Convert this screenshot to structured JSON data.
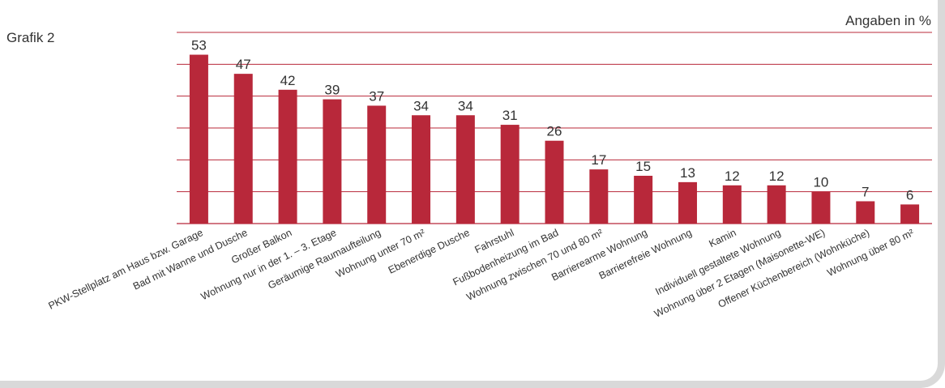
{
  "caption": "Grafik 2",
  "units_note": "Angaben in %",
  "colors": {
    "bar": "#b8283a",
    "grid": "#b8283a",
    "text": "#333333"
  },
  "chart_data": {
    "type": "bar",
    "categories": [
      "PKW-Stellplatz am Haus bzw. Garage",
      "Bad mit Wanne und Dusche",
      "Großer Balkon",
      "Wohnung nur in der 1. – 3. Etage",
      "Geräumige Raumaufteilung",
      "Wohnung unter 70 m²",
      "Ebenerdige Dusche",
      "Fahrstuhl",
      "Fußbodenheizung im Bad",
      "Wohnung zwischen 70 und 80 m²",
      "Barrierearme Wohnung",
      "Barrierefreie Wohnung",
      "Kamin",
      "Individuell gestaltete Wohnung",
      "Wohnung über 2 Etagen (Maisonette-WE)",
      "Offener Küchenbereich (Wohnküche)",
      "Wohnung über 80 m²"
    ],
    "values": [
      53,
      47,
      42,
      39,
      37,
      34,
      34,
      31,
      26,
      17,
      15,
      13,
      12,
      12,
      10,
      7,
      6
    ],
    "ylim": [
      0,
      60
    ],
    "grid": true,
    "data_labels": true
  }
}
